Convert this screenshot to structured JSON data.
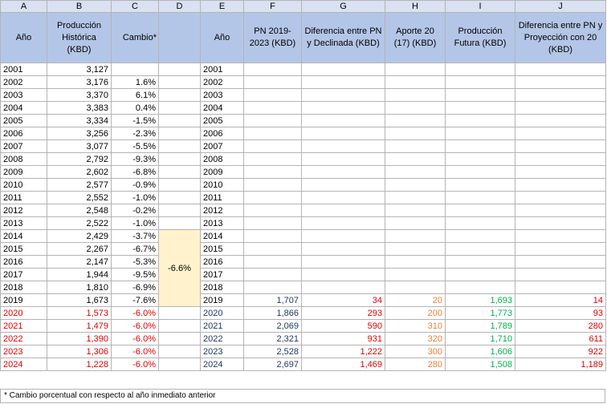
{
  "columns": [
    "A",
    "B",
    "C",
    "D",
    "E",
    "F",
    "G",
    "H",
    "I",
    "J"
  ],
  "headers": {
    "anio_left": "Año",
    "produccion_historica": "Producción Histórica (KBD)",
    "cambio": "Cambio*",
    "anio_right": "Año",
    "pn": "PN 2019-2023 (KBD)",
    "diferencia_declinada": "Diferencia entre PN y Declinada (KBD)",
    "aporte": "Aporte 20 (17) (KBD)",
    "produccion_futura": "Producción Futura (KBD)",
    "diferencia_proyeccion": "Diferencia entre PN y Proyección con 20 (KBD)"
  },
  "merged_average": "-6.6%",
  "rows": [
    {
      "year": "2001",
      "prod": "3,127",
      "change": "",
      "year2": "2001"
    },
    {
      "year": "2002",
      "prod": "3,176",
      "change": "1.6%",
      "year2": "2002"
    },
    {
      "year": "2003",
      "prod": "3,370",
      "change": "6.1%",
      "year2": "2003"
    },
    {
      "year": "2004",
      "prod": "3,383",
      "change": "0.4%",
      "year2": "2004"
    },
    {
      "year": "2005",
      "prod": "3,334",
      "change": "-1.5%",
      "year2": "2005"
    },
    {
      "year": "2006",
      "prod": "3,256",
      "change": "-2.3%",
      "year2": "2006"
    },
    {
      "year": "2007",
      "prod": "3,077",
      "change": "-5.5%",
      "year2": "2007"
    },
    {
      "year": "2008",
      "prod": "2,792",
      "change": "-9.3%",
      "year2": "2008"
    },
    {
      "year": "2009",
      "prod": "2,602",
      "change": "-6.8%",
      "year2": "2009"
    },
    {
      "year": "2010",
      "prod": "2,577",
      "change": "-0.9%",
      "year2": "2010"
    },
    {
      "year": "2011",
      "prod": "2,552",
      "change": "-1.0%",
      "year2": "2011"
    },
    {
      "year": "2012",
      "prod": "2,548",
      "change": "-0.2%",
      "year2": "2012"
    },
    {
      "year": "2013",
      "prod": "2,522",
      "change": "-1.0%",
      "year2": "2013"
    },
    {
      "year": "2014",
      "prod": "2,429",
      "change": "-3.7%",
      "year2": "2014"
    },
    {
      "year": "2015",
      "prod": "2,267",
      "change": "-6.7%",
      "year2": "2015"
    },
    {
      "year": "2016",
      "prod": "2,147",
      "change": "-5.3%",
      "year2": "2016"
    },
    {
      "year": "2017",
      "prod": "1,944",
      "change": "-9.5%",
      "year2": "2017"
    },
    {
      "year": "2018",
      "prod": "1,810",
      "change": "-6.9%",
      "year2": "2018"
    },
    {
      "year": "2019",
      "prod": "1,673",
      "change": "-7.6%",
      "year2": "2019",
      "pn": "1,707",
      "diff": "34",
      "aporte": "20",
      "futura": "1,693",
      "diff2": "14"
    },
    {
      "year": "2020",
      "prod": "1,573",
      "change": "-6.0%",
      "year2": "2020",
      "pn": "1,866",
      "diff": "293",
      "aporte": "200",
      "futura": "1,773",
      "diff2": "93"
    },
    {
      "year": "2021",
      "prod": "1,479",
      "change": "-6.0%",
      "year2": "2021",
      "pn": "2,069",
      "diff": "590",
      "aporte": "310",
      "futura": "1,789",
      "diff2": "280"
    },
    {
      "year": "2022",
      "prod": "1,390",
      "change": "-6.0%",
      "year2": "2022",
      "pn": "2,321",
      "diff": "931",
      "aporte": "320",
      "futura": "1,710",
      "diff2": "611"
    },
    {
      "year": "2023",
      "prod": "1,306",
      "change": "-6.0%",
      "year2": "2023",
      "pn": "2,528",
      "diff": "1,222",
      "aporte": "300",
      "futura": "1,606",
      "diff2": "922"
    },
    {
      "year": "2024",
      "prod": "1,228",
      "change": "-6.0%",
      "year2": "2024",
      "pn": "2,697",
      "diff": "1,469",
      "aporte": "280",
      "futura": "1,508",
      "diff2": "1,189"
    }
  ],
  "footnote": "* Cambio porcentual con respecto al año inmediato anterior",
  "colors": {
    "header_fill": "#b4c6e7",
    "column_letter_fill": "#d9e1f2",
    "highlight_fill": "#fff2cc",
    "projection_red": "#e00000",
    "pn_navy": "#1f3864",
    "aporte_orange": "#ed7d31",
    "futura_green": "#00b050"
  }
}
